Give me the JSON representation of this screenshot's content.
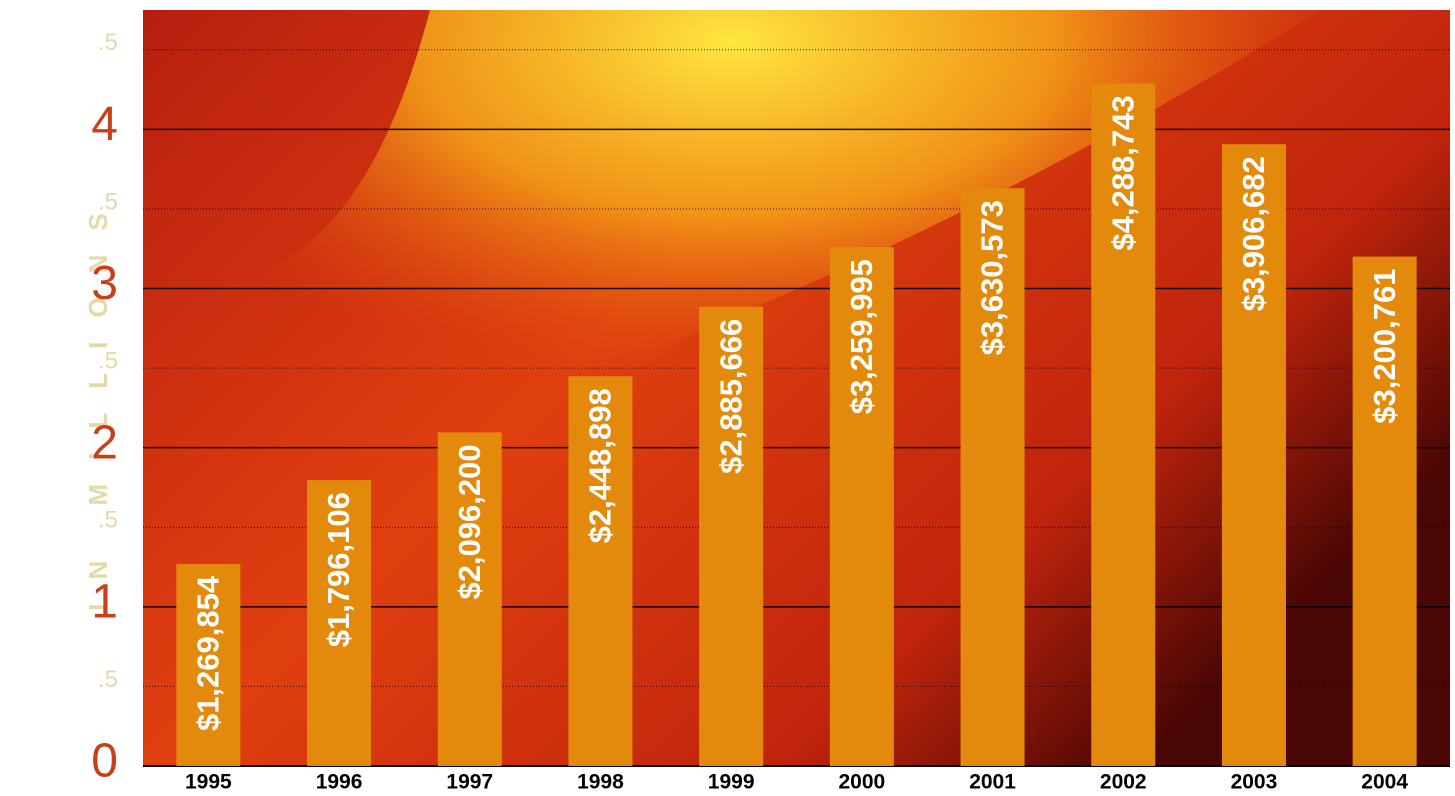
{
  "chart_data": {
    "type": "bar",
    "y_label": "IN MILLIONS",
    "categories": [
      "1995",
      "1996",
      "1997",
      "1998",
      "1999",
      "2000",
      "2001",
      "2002",
      "2003",
      "2004"
    ],
    "values": [
      1.269854,
      1.796106,
      2.0962,
      2.448898,
      2.885666,
      3.259995,
      3.630573,
      4.288743,
      3.906682,
      3.200761
    ],
    "value_labels": [
      "$1,269,854",
      "$1,796,106",
      "$2,096,200",
      "$2,448,898",
      "$2,885,666",
      "$3,259,995",
      "$3,630,573",
      "$4,288,743",
      "$3,906,682",
      "$3,200,761"
    ],
    "color": "#e38a0c",
    "ylim": [
      0,
      4.75
    ],
    "yticks": [
      0,
      {
        "value": 0.5,
        "label": ".5"
      },
      1,
      {
        "value": 1.5,
        "label": ".5"
      },
      2,
      {
        "value": 2.5,
        "label": ".5"
      },
      3,
      {
        "value": 3.5,
        "label": ".5"
      },
      4,
      {
        "value": 4.5,
        "label": ".5"
      }
    ],
    "grid": true
  }
}
